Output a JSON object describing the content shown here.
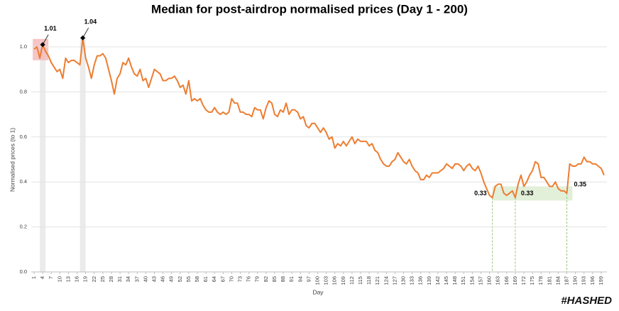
{
  "chart_data": {
    "type": "line",
    "title": "Median for post-airdrop normalised prices (Day 1 - 200)",
    "x_label": "Day",
    "y_label": "Normalised prices (to 1)",
    "logo": "#HASHED",
    "x": [
      1,
      2,
      3,
      4,
      5,
      6,
      7,
      8,
      9,
      10,
      11,
      12,
      13,
      14,
      15,
      16,
      17,
      18,
      19,
      20,
      21,
      22,
      23,
      24,
      25,
      26,
      27,
      28,
      29,
      30,
      31,
      32,
      33,
      34,
      35,
      36,
      37,
      38,
      39,
      40,
      41,
      42,
      43,
      44,
      45,
      46,
      47,
      48,
      49,
      50,
      51,
      52,
      53,
      54,
      55,
      56,
      57,
      58,
      59,
      60,
      61,
      62,
      63,
      64,
      65,
      66,
      67,
      68,
      69,
      70,
      71,
      72,
      73,
      74,
      75,
      76,
      77,
      78,
      79,
      80,
      81,
      82,
      83,
      84,
      85,
      86,
      87,
      88,
      89,
      90,
      91,
      92,
      93,
      94,
      95,
      96,
      97,
      98,
      99,
      100,
      101,
      102,
      103,
      104,
      105,
      106,
      107,
      108,
      109,
      110,
      111,
      112,
      113,
      114,
      115,
      116,
      117,
      118,
      119,
      120,
      121,
      122,
      123,
      124,
      125,
      126,
      127,
      128,
      129,
      130,
      131,
      132,
      133,
      134,
      135,
      136,
      137,
      138,
      139,
      140,
      141,
      142,
      143,
      144,
      145,
      146,
      147,
      148,
      149,
      150,
      151,
      152,
      153,
      154,
      155,
      156,
      157,
      158,
      159,
      160,
      161,
      162,
      163,
      164,
      165,
      166,
      167,
      168,
      169,
      170,
      171,
      172,
      173,
      174,
      175,
      176,
      177,
      178,
      179,
      180,
      181,
      182,
      183,
      184,
      185,
      186,
      187,
      188,
      189,
      190,
      191,
      192,
      193,
      194,
      195,
      196,
      197,
      198,
      199,
      200
    ],
    "series": [
      {
        "name": "Median",
        "color": "#ed7d31",
        "values": [
          0.99,
          1.0,
          0.95,
          1.01,
          0.98,
          0.96,
          0.93,
          0.91,
          0.89,
          0.9,
          0.86,
          0.95,
          0.93,
          0.94,
          0.94,
          0.93,
          0.92,
          1.04,
          0.95,
          0.91,
          0.86,
          0.92,
          0.96,
          0.96,
          0.97,
          0.95,
          0.9,
          0.85,
          0.79,
          0.86,
          0.88,
          0.93,
          0.92,
          0.95,
          0.91,
          0.88,
          0.87,
          0.9,
          0.85,
          0.86,
          0.82,
          0.86,
          0.9,
          0.89,
          0.88,
          0.85,
          0.85,
          0.86,
          0.86,
          0.87,
          0.85,
          0.82,
          0.83,
          0.79,
          0.85,
          0.76,
          0.77,
          0.76,
          0.77,
          0.74,
          0.72,
          0.71,
          0.71,
          0.73,
          0.71,
          0.7,
          0.71,
          0.7,
          0.71,
          0.77,
          0.75,
          0.75,
          0.71,
          0.71,
          0.7,
          0.7,
          0.69,
          0.73,
          0.72,
          0.72,
          0.68,
          0.73,
          0.76,
          0.75,
          0.7,
          0.69,
          0.72,
          0.71,
          0.75,
          0.7,
          0.72,
          0.72,
          0.71,
          0.68,
          0.69,
          0.65,
          0.64,
          0.66,
          0.66,
          0.64,
          0.62,
          0.64,
          0.62,
          0.59,
          0.6,
          0.55,
          0.57,
          0.56,
          0.58,
          0.56,
          0.58,
          0.6,
          0.57,
          0.59,
          0.58,
          0.58,
          0.58,
          0.56,
          0.57,
          0.54,
          0.53,
          0.5,
          0.48,
          0.47,
          0.47,
          0.49,
          0.5,
          0.53,
          0.51,
          0.49,
          0.48,
          0.5,
          0.47,
          0.45,
          0.44,
          0.41,
          0.41,
          0.43,
          0.42,
          0.44,
          0.44,
          0.44,
          0.45,
          0.46,
          0.48,
          0.47,
          0.46,
          0.48,
          0.48,
          0.47,
          0.45,
          0.47,
          0.48,
          0.46,
          0.45,
          0.47,
          0.44,
          0.4,
          0.37,
          0.34,
          0.33,
          0.38,
          0.39,
          0.39,
          0.35,
          0.34,
          0.35,
          0.36,
          0.33,
          0.39,
          0.43,
          0.38,
          0.4,
          0.43,
          0.45,
          0.49,
          0.48,
          0.42,
          0.42,
          0.4,
          0.38,
          0.38,
          0.4,
          0.37,
          0.36,
          0.36,
          0.35,
          0.48,
          0.47,
          0.47,
          0.48,
          0.48,
          0.51,
          0.49,
          0.49,
          0.48,
          0.48,
          0.47,
          0.46,
          0.43
        ]
      }
    ],
    "xlim": [
      0,
      201
    ],
    "xticks": [
      1,
      4,
      7,
      10,
      13,
      16,
      19,
      22,
      25,
      28,
      31,
      34,
      37,
      40,
      43,
      46,
      49,
      52,
      55,
      58,
      61,
      64,
      67,
      70,
      73,
      76,
      79,
      82,
      85,
      88,
      91,
      94,
      97,
      100,
      103,
      106,
      109,
      112,
      115,
      118,
      121,
      124,
      127,
      130,
      133,
      136,
      139,
      142,
      145,
      148,
      151,
      154,
      157,
      160,
      163,
      166,
      169,
      172,
      175,
      178,
      181,
      184,
      187,
      190,
      193,
      196,
      199
    ],
    "ylim": [
      0,
      1
    ],
    "yticks": [
      {
        "value": 0,
        "label": "0.0"
      },
      0.2,
      0.4,
      0.6,
      0.8,
      {
        "value": 1,
        "label": "1.0"
      }
    ],
    "grid": true,
    "annotations": [
      {
        "text": "1.01",
        "x": 4
      },
      {
        "text": "1.04",
        "x": 18
      },
      {
        "text": "0.33",
        "x": 161
      },
      {
        "text": "0.33",
        "x": 169
      },
      {
        "text": "0.35",
        "x": 187
      }
    ]
  }
}
